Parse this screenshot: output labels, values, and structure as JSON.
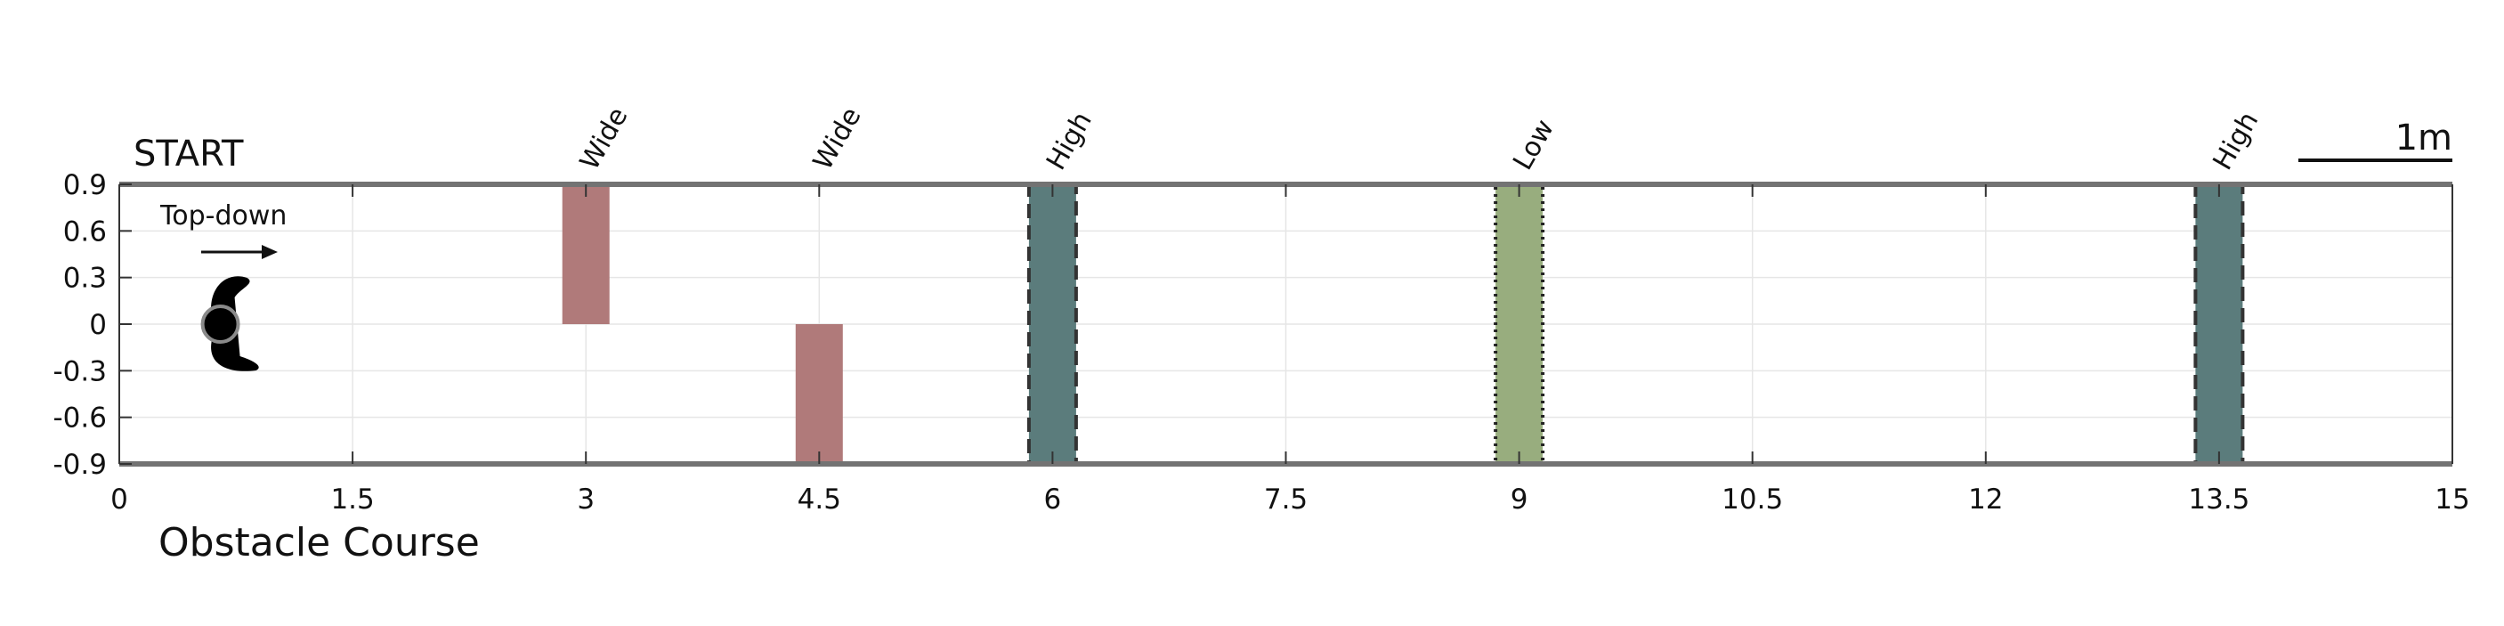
{
  "chart_data": {
    "type": "bar",
    "xlabel": "Obstacle Course",
    "ylabel": "",
    "xlim": [
      0,
      15
    ],
    "ylim": [
      -0.9,
      0.9
    ],
    "x_ticks": [
      "0",
      "1.5",
      "3",
      "4.5",
      "6",
      "7.5",
      "9",
      "10.5",
      "12",
      "13.5",
      "15"
    ],
    "x_tick_values": [
      0,
      1.5,
      3,
      4.5,
      6,
      7.5,
      9,
      10.5,
      12,
      13.5,
      15
    ],
    "y_ticks": [
      "0.9",
      "0.6",
      "0.3",
      "0",
      "-0.3",
      "-0.6",
      "-0.9"
    ],
    "y_tick_values": [
      0.9,
      0.6,
      0.3,
      0,
      -0.3,
      -0.6,
      -0.9
    ],
    "grid": true,
    "start_label": "START",
    "scale_bar_label": "1m",
    "robot": {
      "label": "Top-down",
      "x": 0.65,
      "y": 0
    },
    "obstacles": [
      {
        "label": "Wide",
        "x": 3.0,
        "y0": 0,
        "y1": 0.9,
        "color": "#b07a7a",
        "border": "none"
      },
      {
        "label": "Wide",
        "x": 4.5,
        "y0": -0.9,
        "y1": 0,
        "color": "#b07a7a",
        "border": "none"
      },
      {
        "label": "High",
        "x": 6.0,
        "y0": -0.9,
        "y1": 0.9,
        "color": "#5b7c7c",
        "border": "dashed"
      },
      {
        "label": "Low",
        "x": 9.0,
        "y0": -0.9,
        "y1": 0.9,
        "color": "#98ad7e",
        "border": "dotted"
      },
      {
        "label": "High",
        "x": 13.5,
        "y0": -0.9,
        "y1": 0.9,
        "color": "#5b7c7c",
        "border": "dashed"
      }
    ]
  }
}
